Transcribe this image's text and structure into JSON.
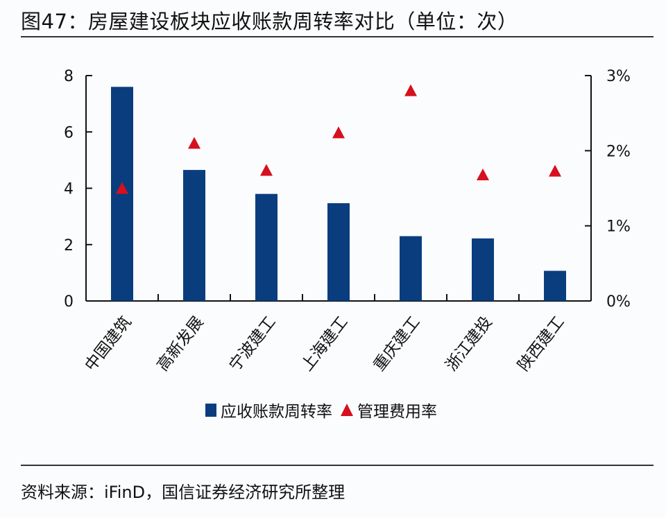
{
  "header": {
    "title": "图47：房屋建设板块应收账款周转率对比（单位：次）"
  },
  "footer": {
    "source": "资料来源：iFinD，国信证券经济研究所整理"
  },
  "legend": {
    "bar_label": "应收账款周转率",
    "marker_label": "管理费用率"
  },
  "colors": {
    "bar": "#0a3d7e",
    "marker": "#d6101e",
    "axis": "#111111"
  },
  "chart_data": {
    "type": "bar",
    "title": "房屋建设板块应收账款周转率对比（单位：次）",
    "categories": [
      "中国建筑",
      "高新发展",
      "宁波建工",
      "上海建工",
      "重庆建工",
      "浙江建投",
      "陕西建工"
    ],
    "series": [
      {
        "name": "应收账款周转率",
        "type": "bar",
        "axis": "left",
        "values": [
          7.6,
          4.65,
          3.8,
          3.47,
          2.3,
          2.22,
          1.07
        ]
      },
      {
        "name": "管理费用率",
        "type": "scatter",
        "marker": "triangle",
        "axis": "right",
        "unit": "%",
        "values": [
          1.5,
          2.1,
          1.74,
          2.24,
          2.8,
          1.68,
          1.73
        ]
      }
    ],
    "left_axis": {
      "ticks": [
        "0",
        "2",
        "4",
        "6",
        "8"
      ],
      "ylim": [
        0,
        8
      ]
    },
    "right_axis": {
      "ticks": [
        "0%",
        "1%",
        "2%",
        "3%"
      ],
      "ylim": [
        0,
        3
      ]
    },
    "xlabel": "",
    "ylabel": "",
    "grid": false,
    "legend_position": "bottom"
  }
}
